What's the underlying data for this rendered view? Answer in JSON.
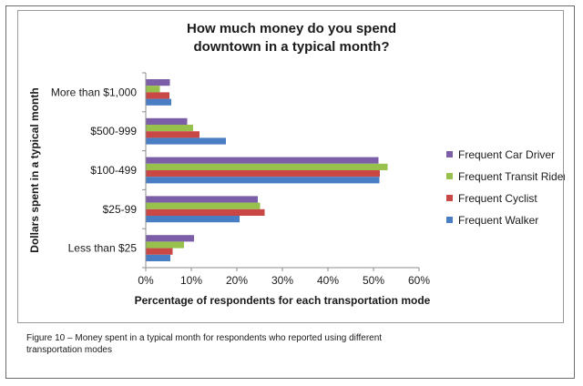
{
  "chart_data": {
    "type": "bar",
    "orientation": "horizontal",
    "title_lines": [
      "How much money do you spend",
      "downtown in a typical month?"
    ],
    "xlabel": "Percentage of respondents for each transportation mode",
    "ylabel": "Dollars spent in a typical month",
    "categories": [
      "More than $1,000",
      "$500-999",
      "$100-499",
      "$25-99",
      "Less than $25"
    ],
    "xlim": [
      0,
      60
    ],
    "xticks": [
      "0%",
      "10%",
      "20%",
      "30%",
      "40%",
      "50%",
      "60%"
    ],
    "grid": false,
    "legend_position": "right",
    "series": [
      {
        "name": "Frequent Car Driver",
        "color": "#7b5ea7",
        "values": [
          5.2,
          9.0,
          51.0,
          24.5,
          10.5
        ]
      },
      {
        "name": "Frequent Transit Rider",
        "color": "#97c04c",
        "values": [
          3.0,
          10.3,
          53.0,
          25.0,
          8.3
        ]
      },
      {
        "name": "Frequent Cyclist",
        "color": "#c94846",
        "values": [
          5.1,
          11.7,
          51.3,
          26.0,
          5.8
        ]
      },
      {
        "name": "Frequent Walker",
        "color": "#4a7ec4",
        "values": [
          5.5,
          17.5,
          51.2,
          20.5,
          5.3
        ]
      }
    ]
  },
  "caption": {
    "label": "Figure 10",
    "text": " – Money spent in a typical month for respondents who reported using different transportation modes"
  }
}
